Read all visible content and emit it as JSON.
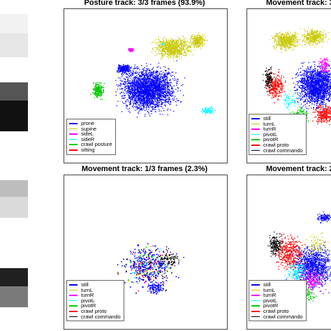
{
  "panels": [
    {
      "id": "posture-track",
      "title": "Posture track: 3/3 frames (93.9%)",
      "legend": [
        {
          "label": "prone",
          "color": "#0000ff"
        },
        {
          "label": "supine",
          "color": "#c8c800"
        },
        {
          "label": "sideL",
          "color": "#ff00ff"
        },
        {
          "label": "sideR",
          "color": "#00ffff"
        },
        {
          "label": "crawl posture",
          "color": "#00cc00"
        },
        {
          "label": "sitting",
          "color": "#ff0000"
        }
      ]
    },
    {
      "id": "movement-track-3",
      "title": "Movement track: 3",
      "legend": [
        {
          "label": "still",
          "color": "#0000ff"
        },
        {
          "label": "turnL",
          "color": "#c8c800"
        },
        {
          "label": "turnR",
          "color": "#ff00ff"
        },
        {
          "label": "pivotL",
          "color": "#00ffff"
        },
        {
          "label": "pivotR",
          "color": "#00cc00"
        },
        {
          "label": "crawl proto",
          "color": "#ff0000"
        },
        {
          "label": "crawl commando",
          "color": "#000000"
        }
      ]
    },
    {
      "id": "movement-track-1",
      "title": "Movement track: 1/3 frames (2.3%)",
      "legend": [
        {
          "label": "still",
          "color": "#0000ff"
        },
        {
          "label": "turnL",
          "color": "#c8c800"
        },
        {
          "label": "turnR",
          "color": "#ff00ff"
        },
        {
          "label": "pivotL",
          "color": "#00ffff"
        },
        {
          "label": "pivotR",
          "color": "#00cc00"
        },
        {
          "label": "crawl proto",
          "color": "#ff0000"
        },
        {
          "label": "crawl commando",
          "color": "#000000"
        }
      ]
    },
    {
      "id": "movement-track-2",
      "title": "Movement track: 2.",
      "legend": [
        {
          "label": "still",
          "color": "#0000ff"
        },
        {
          "label": "turnL",
          "color": "#c8c800"
        },
        {
          "label": "turnR",
          "color": "#ff00ff"
        },
        {
          "label": "pivotL",
          "color": "#00ffff"
        },
        {
          "label": "pivotR",
          "color": "#00cc00"
        },
        {
          "label": "crawl proto",
          "color": "#ff0000"
        },
        {
          "label": "crawl commando",
          "color": "#000000"
        }
      ]
    }
  ],
  "gray_strip": {
    "cells": [
      {
        "shade": "#f2f2f2"
      },
      {
        "shade": "#e6e6e6"
      },
      {
        "shade": "#555555"
      },
      {
        "shade": "#111111"
      },
      {
        "shade": "#bdbdbd"
      },
      {
        "shade": "#dadada"
      },
      {
        "shade": "#202020"
      },
      {
        "shade": "#7a7a7a"
      }
    ]
  }
}
